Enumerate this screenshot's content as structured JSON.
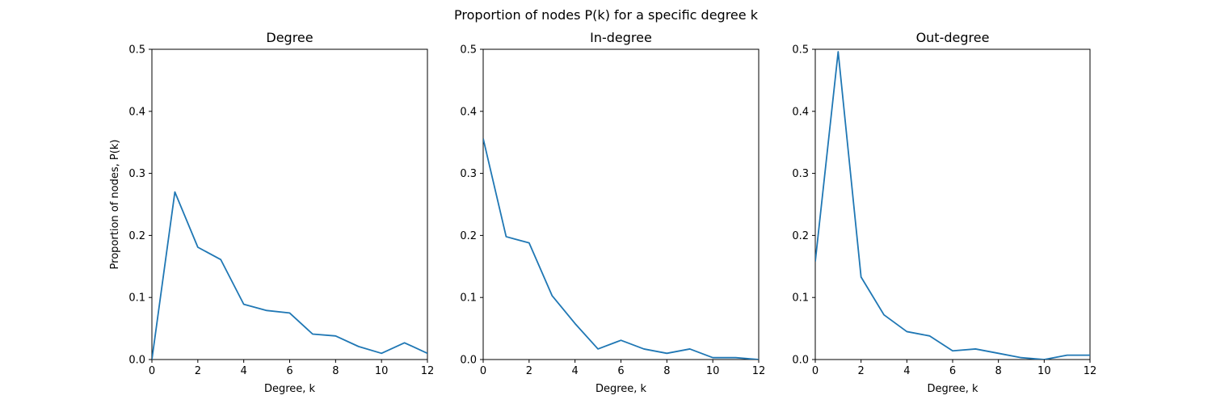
{
  "figure": {
    "suptitle": "Proportion of nodes P(k) for a specific degree k",
    "line_color": "#1f77b4"
  },
  "chart_data": [
    {
      "type": "line",
      "title": "Degree",
      "xlabel": "Degree, k",
      "ylabel": "Proportion of nodes, P(k)",
      "xlim": [
        0,
        12
      ],
      "ylim": [
        0,
        0.5
      ],
      "xticks": [
        "0",
        "2",
        "4",
        "6",
        "8",
        "10",
        "12"
      ],
      "yticks": [
        "0.0",
        "0.1",
        "0.2",
        "0.3",
        "0.4",
        "0.5"
      ],
      "grid": false,
      "x": [
        0,
        1,
        2,
        3,
        4,
        5,
        6,
        7,
        8,
        9,
        10,
        11,
        12
      ],
      "y": [
        0.0,
        0.27,
        0.181,
        0.161,
        0.089,
        0.079,
        0.075,
        0.041,
        0.038,
        0.021,
        0.01,
        0.027,
        0.01
      ]
    },
    {
      "type": "line",
      "title": "In-degree",
      "xlabel": "Degree, k",
      "ylabel": "",
      "xlim": [
        0,
        12
      ],
      "ylim": [
        0,
        0.5
      ],
      "xticks": [
        "0",
        "2",
        "4",
        "6",
        "8",
        "10",
        "12"
      ],
      "yticks": [
        "0.0",
        "0.1",
        "0.2",
        "0.3",
        "0.4",
        "0.5"
      ],
      "grid": false,
      "x": [
        0,
        1,
        2,
        3,
        4,
        5,
        6,
        7,
        8,
        9,
        10,
        11,
        12
      ],
      "y": [
        0.356,
        0.198,
        0.188,
        0.103,
        0.058,
        0.017,
        0.031,
        0.017,
        0.01,
        0.017,
        0.003,
        0.003,
        0.0
      ]
    },
    {
      "type": "line",
      "title": "Out-degree",
      "xlabel": "Degree, k",
      "ylabel": "",
      "xlim": [
        0,
        12
      ],
      "ylim": [
        0,
        0.5
      ],
      "xticks": [
        "0",
        "2",
        "4",
        "6",
        "8",
        "10",
        "12"
      ],
      "yticks": [
        "0.0",
        "0.1",
        "0.2",
        "0.3",
        "0.4",
        "0.5"
      ],
      "grid": false,
      "x": [
        0,
        1,
        2,
        3,
        4,
        5,
        6,
        7,
        8,
        9,
        10,
        11,
        12
      ],
      "y": [
        0.158,
        0.496,
        0.133,
        0.072,
        0.045,
        0.038,
        0.014,
        0.017,
        0.01,
        0.003,
        0.0,
        0.007,
        0.007
      ]
    }
  ]
}
